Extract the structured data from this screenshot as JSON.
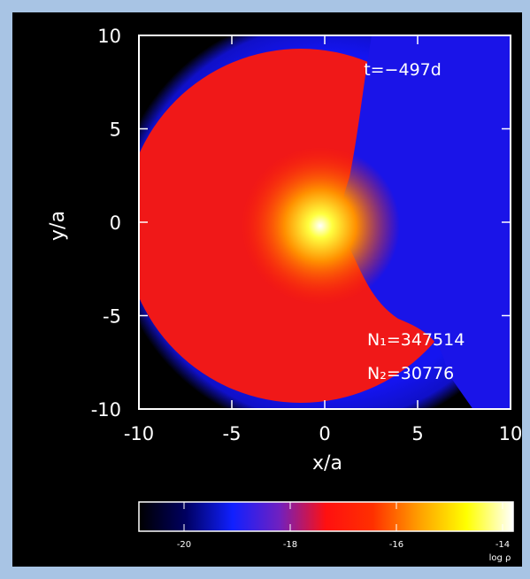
{
  "chart_data": {
    "type": "image",
    "xlabel": "x/a",
    "ylabel": "y/a",
    "xlim": [
      -10,
      10
    ],
    "ylim": [
      -10,
      10
    ],
    "xticks": [
      -10,
      -5,
      0,
      5,
      10
    ],
    "yticks": [
      -10,
      -5,
      0,
      5,
      10
    ],
    "annotations": [
      "t=−497d",
      "N₁=347514",
      "N₂=30776"
    ],
    "colorbar": {
      "label": "log ρ",
      "clim": [
        -20.85,
        -13.8
      ],
      "ticks": [
        -20,
        -18,
        -16,
        -14
      ],
      "colormap": [
        "#000000",
        "#000060",
        "#1020ff",
        "#7020c0",
        "#ff1010",
        "#ff3000",
        "#ffa000",
        "#ffff00",
        "#ffffff"
      ]
    }
  }
}
